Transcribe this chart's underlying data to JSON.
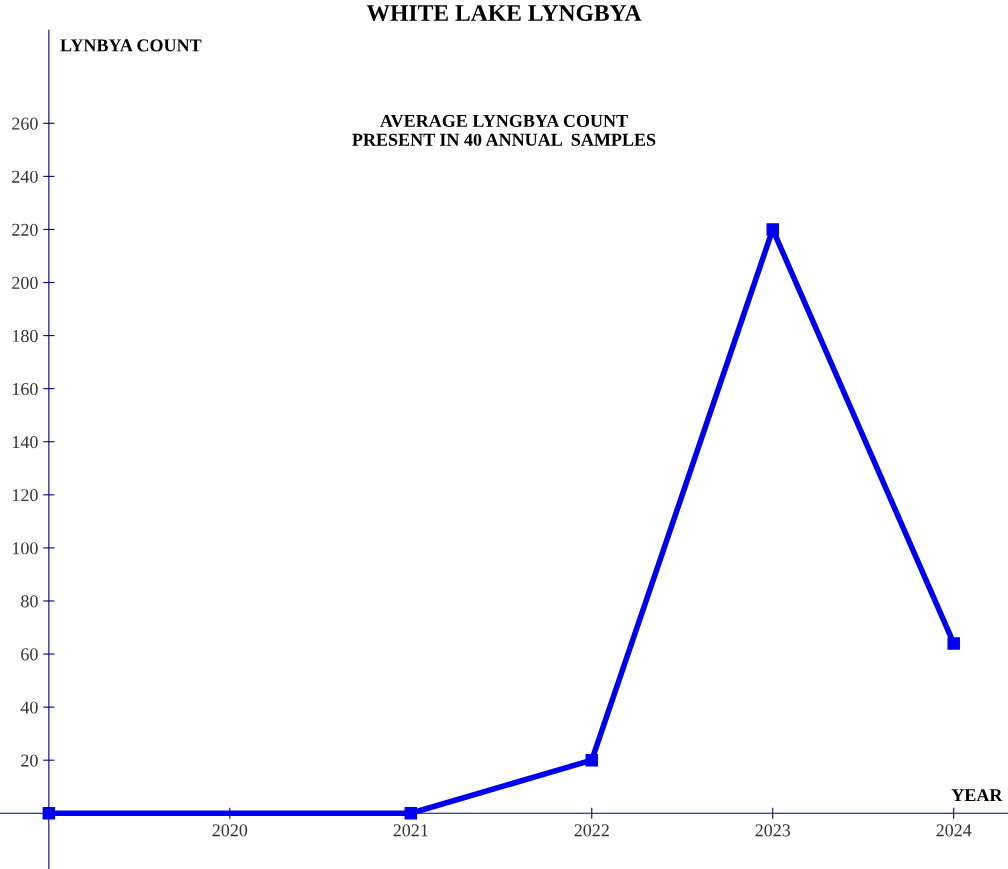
{
  "chart_data": {
    "type": "line",
    "title": "WHITE LAKE LYNGBYA",
    "xlabel": "YEAR",
    "ylabel": "LYNBYA COUNT",
    "annotations": [
      "AVERAGE LYNGBYA COUNT\nPRESENT IN 40 ANNUAL  SAMPLES"
    ],
    "x": [
      2019,
      2021,
      2022,
      2023,
      2024
    ],
    "series": [
      {
        "color": "#0000ee",
        "values": [
          0,
          0,
          20,
          220,
          64
        ]
      }
    ],
    "xlim": [
      2018.73,
      2024.3
    ],
    "ylim": [
      -21,
      295
    ],
    "xticks": [
      2020,
      2021,
      2022,
      2023,
      2024
    ],
    "yticks": [
      20,
      40,
      60,
      80,
      100,
      120,
      140,
      160,
      180,
      200,
      220,
      240,
      260
    ],
    "marker": "square",
    "line_style": "solid",
    "grid": false
  }
}
